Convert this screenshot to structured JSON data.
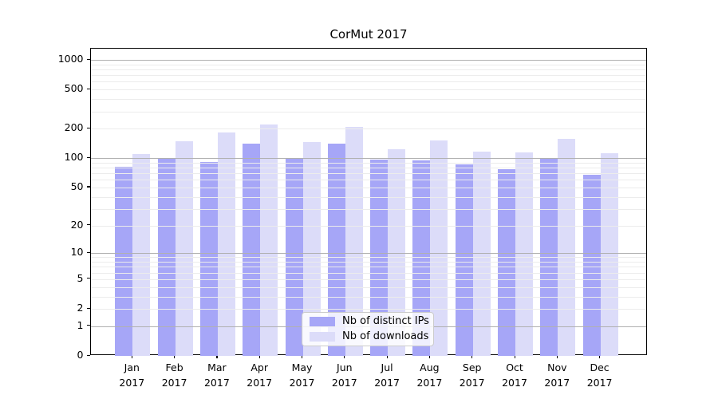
{
  "title": "CorMut 2017",
  "chart_data": {
    "type": "bar",
    "title": "CorMut 2017",
    "categories": [
      "Jan 2017",
      "Feb 2017",
      "Mar 2017",
      "Apr 2017",
      "May 2017",
      "Jun 2017",
      "Jul 2017",
      "Aug 2017",
      "Sep 2017",
      "Oct 2017",
      "Nov 2017",
      "Dec 2017"
    ],
    "x_tick_line1": [
      "Jan",
      "Feb",
      "Mar",
      "Apr",
      "May",
      "Jun",
      "Jul",
      "Aug",
      "Sep",
      "Oct",
      "Nov",
      "Dec"
    ],
    "x_tick_line2": [
      "2017",
      "2017",
      "2017",
      "2017",
      "2017",
      "2017",
      "2017",
      "2017",
      "2017",
      "2017",
      "2017",
      "2017"
    ],
    "series": [
      {
        "name": "Nb of distinct IPs",
        "color": "#a6a6f7",
        "values": [
          81,
          100,
          91,
          141,
          100,
          141,
          97,
          95,
          86,
          77,
          100,
          68
        ]
      },
      {
        "name": "Nb of downloads",
        "color": "#dcdcf9",
        "values": [
          110,
          149,
          184,
          219,
          145,
          207,
          123,
          153,
          117,
          114,
          159,
          112
        ]
      }
    ],
    "yscale": "log1p",
    "ylim": [
      0,
      1300
    ],
    "y_tick_values": [
      1000,
      500,
      200,
      100,
      50,
      20,
      10,
      5,
      2,
      1,
      0
    ],
    "y_tick_labels": [
      "1000",
      "500",
      "200",
      "100",
      "50",
      "20",
      "10",
      "5",
      "2",
      "1",
      "0"
    ],
    "major_grid_values": [
      1,
      10,
      100,
      1000
    ],
    "minor_grid_values": [
      2,
      3,
      4,
      5,
      6,
      7,
      8,
      9,
      20,
      30,
      40,
      50,
      60,
      70,
      80,
      90,
      200,
      300,
      400,
      500,
      600,
      700,
      800,
      900
    ],
    "grid": "horizontal",
    "legend_position": "inside-bottom-center",
    "colors": {
      "axis": "#000000",
      "text": "#000000",
      "major_grid": "#b0b0b0",
      "minor_grid": "#ececec",
      "background": "#ffffff"
    }
  }
}
